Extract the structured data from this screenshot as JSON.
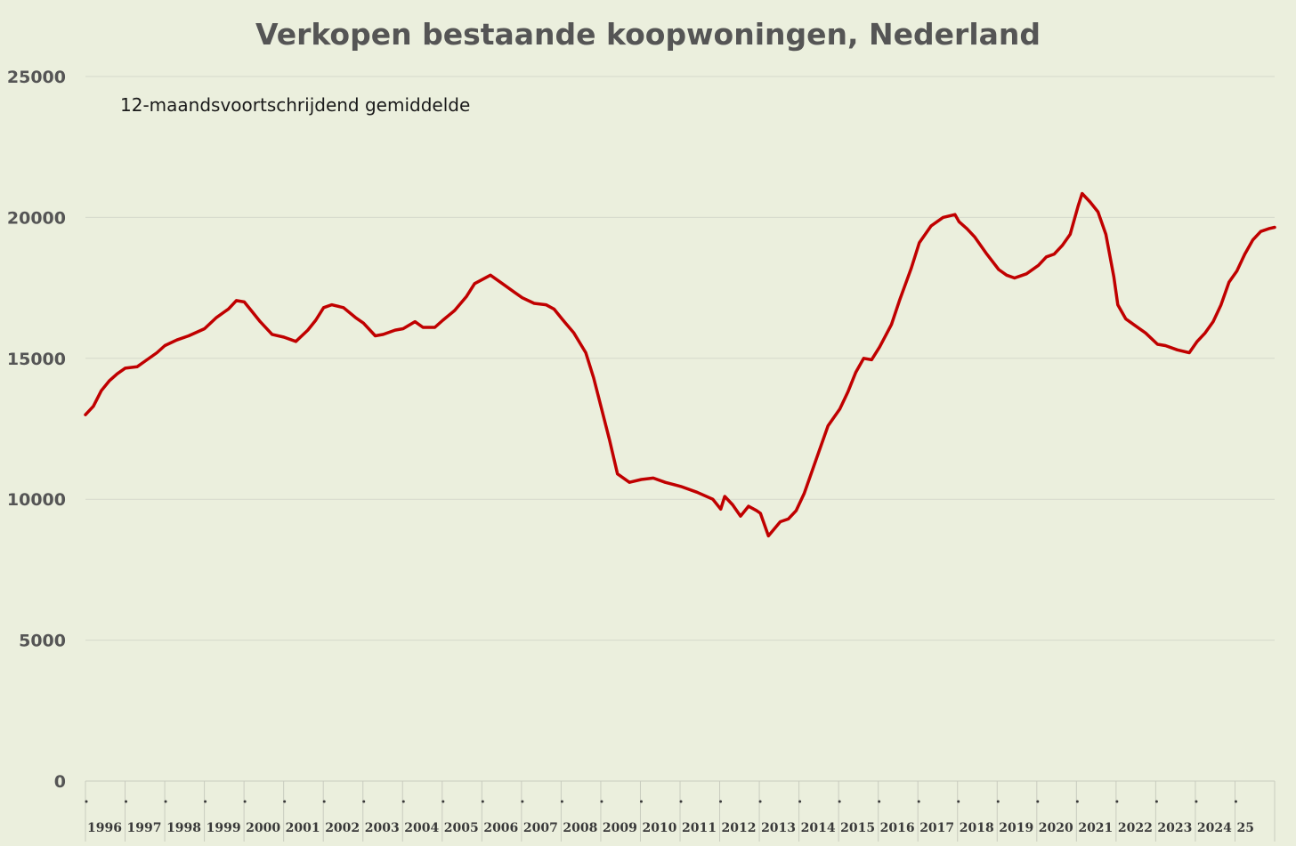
{
  "chart_data": {
    "type": "line",
    "title": "Verkopen bestaande koopwoningen, Nederland",
    "subtitle": "12-maandsvoortschrijdend gemiddelde",
    "xlabel": "",
    "ylabel": "",
    "ylim": [
      0,
      25000
    ],
    "yticks": [
      0,
      5000,
      10000,
      15000,
      20000,
      25000
    ],
    "ytick_labels": [
      "0",
      "5000",
      "10000",
      "15000",
      "20000",
      "25000"
    ],
    "xlim": [
      1996,
      2025.95
    ],
    "categories": [
      "1996",
      "1997",
      "1998",
      "1999",
      "2000",
      "2001",
      "2002",
      "2003",
      "2004",
      "2005",
      "2006",
      "2007",
      "2008",
      "2009",
      "2010",
      "2011",
      "2012",
      "2013",
      "2014",
      "2015",
      "2016",
      "2017",
      "2018",
      "2019",
      "2020",
      "2021",
      "2022",
      "2023",
      "2024",
      "25"
    ],
    "grid": true,
    "legend": "none",
    "colors": {
      "line": "#c00000",
      "background": "#ebefdd",
      "grid": "#d6d9cc"
    },
    "series": [
      {
        "color": "#c00000",
        "x": [
          1996.0,
          1996.2,
          1996.4,
          1996.6,
          1996.8,
          1997.0,
          1997.3,
          1997.5,
          1997.8,
          1998.0,
          1998.3,
          1998.6,
          1999.0,
          1999.3,
          1999.6,
          1999.8,
          2000.0,
          2000.2,
          2000.4,
          2000.7,
          2001.0,
          2001.3,
          2001.6,
          2001.8,
          2002.0,
          2002.2,
          2002.5,
          2002.8,
          2003.0,
          2003.3,
          2003.5,
          2003.8,
          2004.0,
          2004.3,
          2004.5,
          2004.8,
          2005.0,
          2005.3,
          2005.6,
          2005.8,
          2006.0,
          2006.2,
          2006.5,
          2006.8,
          2007.0,
          2007.3,
          2007.6,
          2007.8,
          2008.0,
          2008.3,
          2008.6,
          2008.8,
          2009.0,
          2009.2,
          2009.4,
          2009.7,
          2010.0,
          2010.3,
          2010.6,
          2011.0,
          2011.4,
          2011.8,
          2012.0,
          2012.1,
          2012.3,
          2012.5,
          2012.7,
          2012.9,
          2013.0,
          2013.2,
          2013.5,
          2013.7,
          2013.9,
          2014.1,
          2014.4,
          2014.7,
          2015.0,
          2015.2,
          2015.4,
          2015.6,
          2015.8,
          2016.0,
          2016.3,
          2016.5,
          2016.8,
          2017.0,
          2017.3,
          2017.6,
          2017.9,
          2018.0,
          2018.2,
          2018.4,
          2018.7,
          2019.0,
          2019.2,
          2019.4,
          2019.7,
          2020.0,
          2020.2,
          2020.4,
          2020.6,
          2020.8,
          2021.0,
          2021.1,
          2021.3,
          2021.5,
          2021.7,
          2021.9,
          2022.0,
          2022.2,
          2022.4,
          2022.7,
          2023.0,
          2023.2,
          2023.5,
          2023.8,
          2024.0,
          2024.2,
          2024.4,
          2024.6,
          2024.8,
          2025.0,
          2025.2,
          2025.4,
          2025.6,
          2025.8,
          2025.95
        ],
        "values": [
          13000,
          13300,
          13850,
          14200,
          14450,
          14650,
          14700,
          14900,
          15200,
          15450,
          15650,
          15800,
          16050,
          16450,
          16750,
          17050,
          17000,
          16650,
          16300,
          15850,
          15750,
          15600,
          16000,
          16350,
          16800,
          16900,
          16800,
          16450,
          16250,
          15800,
          15850,
          16000,
          16050,
          16300,
          16100,
          16100,
          16350,
          16700,
          17200,
          17650,
          17800,
          17950,
          17650,
          17350,
          17150,
          16950,
          16900,
          16750,
          16400,
          15900,
          15200,
          14300,
          13200,
          12100,
          10900,
          10600,
          10700,
          10750,
          10600,
          10450,
          10250,
          10000,
          9650,
          10100,
          9800,
          9400,
          9750,
          9600,
          9500,
          8700,
          9200,
          9300,
          9600,
          10200,
          11400,
          12600,
          13200,
          13800,
          14500,
          15000,
          14950,
          15400,
          16200,
          17050,
          18200,
          19100,
          19700,
          20000,
          20100,
          19850,
          19600,
          19300,
          18700,
          18150,
          17950,
          17850,
          18000,
          18300,
          18600,
          18700,
          19000,
          19400,
          20400,
          20850,
          20550,
          20200,
          19400,
          17900,
          16900,
          16400,
          16200,
          15900,
          15500,
          15450,
          15300,
          15200,
          15600,
          15900,
          16300,
          16900,
          17700,
          18100,
          18700,
          19200,
          19500,
          19600,
          19650
        ]
      }
    ]
  }
}
